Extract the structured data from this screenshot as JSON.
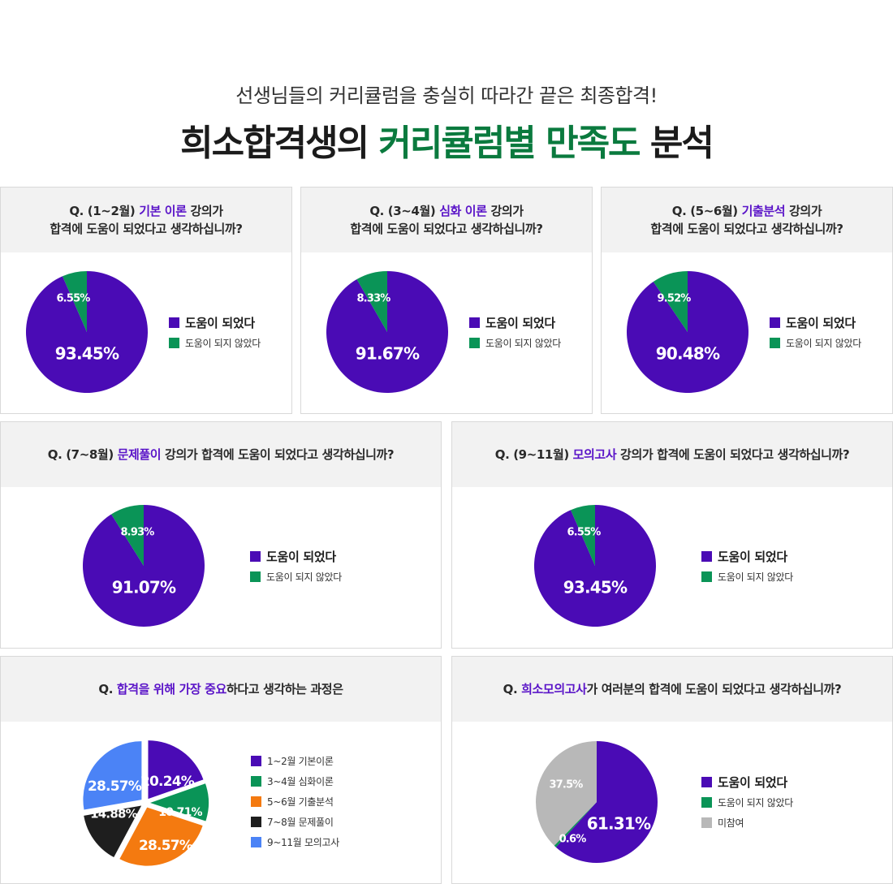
{
  "header": {
    "subtitle": "선생님들의 커리큘럼을 충실히 따라간 끝은 최종합격!",
    "title_part1": "희소합격생의 ",
    "title_highlight": "커리큘럼별 만족도",
    "title_part2": " 분석"
  },
  "colors": {
    "purple": "#4a0bb5",
    "green": "#0a9457",
    "orange": "#f47a10",
    "black": "#1e1e1e",
    "blue": "#4b83f6",
    "gray": "#b8b8b8",
    "highlight_text": "#5a14c8",
    "title_green": "#0a7a3e"
  },
  "cards": [
    {
      "q_prefix": "Q. (1~2월) ",
      "q_highlight": "기본 이론",
      "q_suffix": " 강의가",
      "q_line2": "합격에 도움이 되었다고 생각하십니까?",
      "legend": [
        "도움이 되었다",
        "도움이 되지 않았다"
      ]
    },
    {
      "q_prefix": "Q. (3~4월) ",
      "q_highlight": "심화 이론",
      "q_suffix": " 강의가",
      "q_line2": "합격에 도움이 되었다고 생각하십니까?",
      "legend": [
        "도움이 되었다",
        "도움이 되지 않았다"
      ]
    },
    {
      "q_prefix": "Q. (5~6월) ",
      "q_highlight": "기출분석",
      "q_suffix": " 강의가",
      "q_line2": "합격에 도움이 되었다고 생각하십니까?",
      "legend": [
        "도움이 되었다",
        "도움이 되지 않았다"
      ]
    },
    {
      "q_prefix": "Q. (7~8월) ",
      "q_highlight": "문제풀이",
      "q_suffix": " 강의가 합격에 도움이 되었다고 생각하십니까?",
      "legend": [
        "도움이 되었다",
        "도움이 되지 않았다"
      ]
    },
    {
      "q_prefix": "Q. (9~11월) ",
      "q_highlight": "모의고사",
      "q_suffix": " 강의가 합격에 도움이 되었다고 생각하십니까?",
      "legend": [
        "도움이 되었다",
        "도움이 되지 않았다"
      ]
    },
    {
      "q_prefix": "Q. ",
      "q_highlight": "합격을 위해 가장 중요",
      "q_suffix": "하다고  생각하는 과정은",
      "legend": [
        "1~2월 기본이론",
        "3~4월 심화이론",
        "5~6월 기출분석",
        "7~8월 문제풀이",
        "9~11월 모의고사"
      ]
    },
    {
      "q_prefix": "Q. ",
      "q_highlight": "희소모의고사",
      "q_suffix": "가 여러분의 합격에 도움이 되었다고 생각하십니까?",
      "legend": [
        "도움이 되었다",
        "도움이 되지 않았다",
        "미참여"
      ]
    }
  ],
  "chart_data": [
    {
      "type": "pie",
      "title": "Q. (1~2월) 기본 이론 강의가 합격에 도움이 되었다고 생각하십니까?",
      "labels": [
        "도움이 되었다",
        "도움이 되지 않았다"
      ],
      "values": [
        93.45,
        6.55
      ],
      "value_labels": [
        "93.45%",
        "6.55%"
      ]
    },
    {
      "type": "pie",
      "title": "Q. (3~4월) 심화 이론 강의가 합격에 도움이 되었다고 생각하십니까?",
      "labels": [
        "도움이 되었다",
        "도움이 되지 않았다"
      ],
      "values": [
        91.67,
        8.33
      ],
      "value_labels": [
        "91.67%",
        "8.33%"
      ]
    },
    {
      "type": "pie",
      "title": "Q. (5~6월) 기출분석 강의가 합격에 도움이 되었다고 생각하십니까?",
      "labels": [
        "도움이 되었다",
        "도움이 되지 않았다"
      ],
      "values": [
        90.48,
        9.52
      ],
      "value_labels": [
        "90.48%",
        "9.52%"
      ]
    },
    {
      "type": "pie",
      "title": "Q. (7~8월) 문제풀이 강의가 합격에 도움이 되었다고 생각하십니까?",
      "labels": [
        "도움이 되었다",
        "도움이 되지 않았다"
      ],
      "values": [
        91.07,
        8.93
      ],
      "value_labels": [
        "91.07%",
        "8.93%"
      ]
    },
    {
      "type": "pie",
      "title": "Q. (9~11월) 모의고사 강의가 합격에 도움이 되었다고 생각하십니까?",
      "labels": [
        "도움이 되었다",
        "도움이 되지 않았다"
      ],
      "values": [
        93.45,
        6.55
      ],
      "value_labels": [
        "93.45%",
        "6.55%"
      ]
    },
    {
      "type": "pie",
      "title": "Q. 합격을 위해 가장 중요하다고  생각하는 과정은",
      "labels": [
        "1~2월 기본이론",
        "3~4월 심화이론",
        "5~6월 기출분석",
        "7~8월 문제풀이",
        "9~11월 모의고사"
      ],
      "values": [
        20.24,
        10.71,
        28.57,
        14.88,
        28.57
      ],
      "exploded": true,
      "value_labels": [
        "20.24%",
        "10.71%",
        "28.57%",
        "14.88%",
        "28.57%"
      ]
    },
    {
      "type": "pie",
      "title": "Q. 희소모의고사가 여러분의 합격에 도움이 되었다고 생각하십니까?",
      "labels": [
        "도움이 되었다",
        "도움이 되지 않았다",
        "미참여"
      ],
      "values": [
        61.31,
        0.6,
        37.5
      ],
      "value_labels": [
        "61.31%",
        "0.6%",
        "37.5%"
      ]
    }
  ]
}
